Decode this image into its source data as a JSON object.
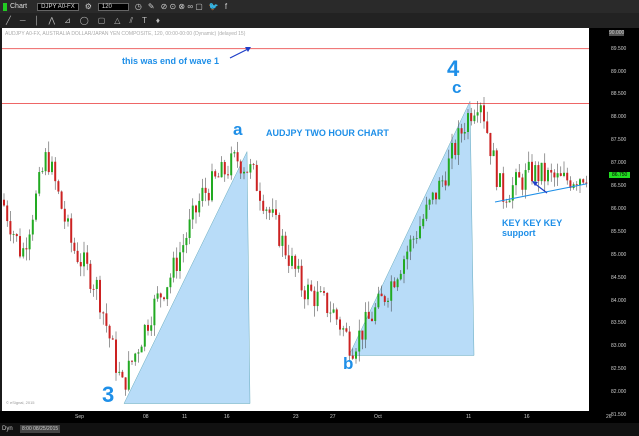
{
  "window": {
    "title": "Chart"
  },
  "toolbar": {
    "symbol": "DJPY A0-FX",
    "interval": "120"
  },
  "chart_header": "AUDJPY A0-FX, AUSTRALIA DOLLAR/JAPAN YEN COMPOSITE, 120, 00:00-00:00 (Dynamic) (delayed 15)",
  "copyright": "© eSignal, 2015",
  "bottom_bar": {
    "mode": "Dyn",
    "date": "8:00 08/25/2015"
  },
  "colors": {
    "up": "#22aa22",
    "down": "#cc2222",
    "triangle": "#b8dcf8",
    "annotation": "#1e8fe8",
    "resistance": "#ee6666"
  },
  "chart_data": {
    "type": "candlestick",
    "title": "AUDJPY TWO HOUR CHART",
    "y_ticks": [
      "89.500",
      "89.000",
      "88.500",
      "88.000",
      "87.500",
      "87.000",
      "86.500",
      "86.000",
      "85.500",
      "85.000",
      "84.500",
      "84.000",
      "83.500",
      "83.000",
      "82.500",
      "82.000",
      "81.500"
    ],
    "ylim": [
      81.4,
      90.0
    ],
    "top_price": "90.000",
    "current_price": "86.750",
    "x_ticks": [
      "Sep",
      "08",
      "11",
      "16",
      "23",
      "27",
      "Oct",
      "11",
      "16",
      "26"
    ],
    "price_path": [
      [
        0,
        86.2
      ],
      [
        20,
        85.0
      ],
      [
        45,
        87.2
      ],
      [
        70,
        85.2
      ],
      [
        95,
        84.3
      ],
      [
        120,
        82.1
      ],
      [
        150,
        83.8
      ],
      [
        170,
        84.6
      ],
      [
        200,
        86.3
      ],
      [
        235,
        87.1
      ],
      [
        250,
        86.8
      ],
      [
        270,
        85.8
      ],
      [
        300,
        84.3
      ],
      [
        330,
        83.8
      ],
      [
        350,
        83.0
      ],
      [
        380,
        84.0
      ],
      [
        410,
        85.3
      ],
      [
        440,
        86.6
      ],
      [
        465,
        88.0
      ],
      [
        478,
        88.5
      ],
      [
        490,
        87.2
      ],
      [
        500,
        86.3
      ],
      [
        530,
        86.8
      ],
      [
        560,
        86.6
      ],
      [
        585,
        86.8
      ]
    ],
    "resistance_lines": [
      89.5,
      88.3
    ],
    "annotations": {
      "wave1": "this was end of wave 1",
      "a": "a",
      "b": "b",
      "c": "c",
      "three": "3",
      "four": "4",
      "support": "KEY KEY KEY support"
    }
  }
}
